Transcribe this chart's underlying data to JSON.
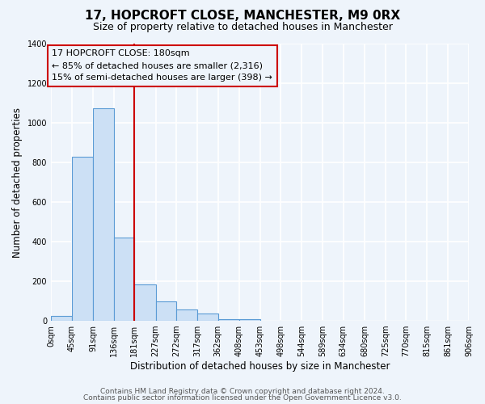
{
  "title": "17, HOPCROFT CLOSE, MANCHESTER, M9 0RX",
  "subtitle": "Size of property relative to detached houses in Manchester",
  "xlabel": "Distribution of detached houses by size in Manchester",
  "ylabel": "Number of detached properties",
  "bar_values": [
    25,
    830,
    1075,
    420,
    185,
    100,
    58,
    38,
    10,
    8,
    0,
    0,
    0,
    0,
    0,
    0,
    0,
    0,
    0,
    0
  ],
  "bin_edges": [
    0,
    45,
    91,
    136,
    181,
    227,
    272,
    317,
    362,
    408,
    453,
    498,
    544,
    589,
    634,
    680,
    725,
    770,
    815,
    861,
    906
  ],
  "tick_labels": [
    "0sqm",
    "45sqm",
    "91sqm",
    "136sqm",
    "181sqm",
    "227sqm",
    "272sqm",
    "317sqm",
    "362sqm",
    "408sqm",
    "453sqm",
    "498sqm",
    "544sqm",
    "589sqm",
    "634sqm",
    "680sqm",
    "725sqm",
    "770sqm",
    "815sqm",
    "861sqm",
    "906sqm"
  ],
  "bar_color": "#cce0f5",
  "bar_edgecolor": "#5b9bd5",
  "vline_x": 181,
  "vline_color": "#cc0000",
  "box_text_line1": "17 HOPCROFT CLOSE: 180sqm",
  "box_text_line2": "← 85% of detached houses are smaller (2,316)",
  "box_text_line3": "15% of semi-detached houses are larger (398) →",
  "ylim": [
    0,
    1400
  ],
  "yticks": [
    0,
    200,
    400,
    600,
    800,
    1000,
    1200,
    1400
  ],
  "footnote1": "Contains HM Land Registry data © Crown copyright and database right 2024.",
  "footnote2": "Contains public sector information licensed under the Open Government Licence v3.0.",
  "bg_color": "#eef4fb",
  "grid_color": "#ffffff",
  "title_fontsize": 11,
  "subtitle_fontsize": 9,
  "axis_label_fontsize": 8.5,
  "tick_fontsize": 7,
  "annotation_fontsize": 8,
  "footnote_fontsize": 6.5
}
